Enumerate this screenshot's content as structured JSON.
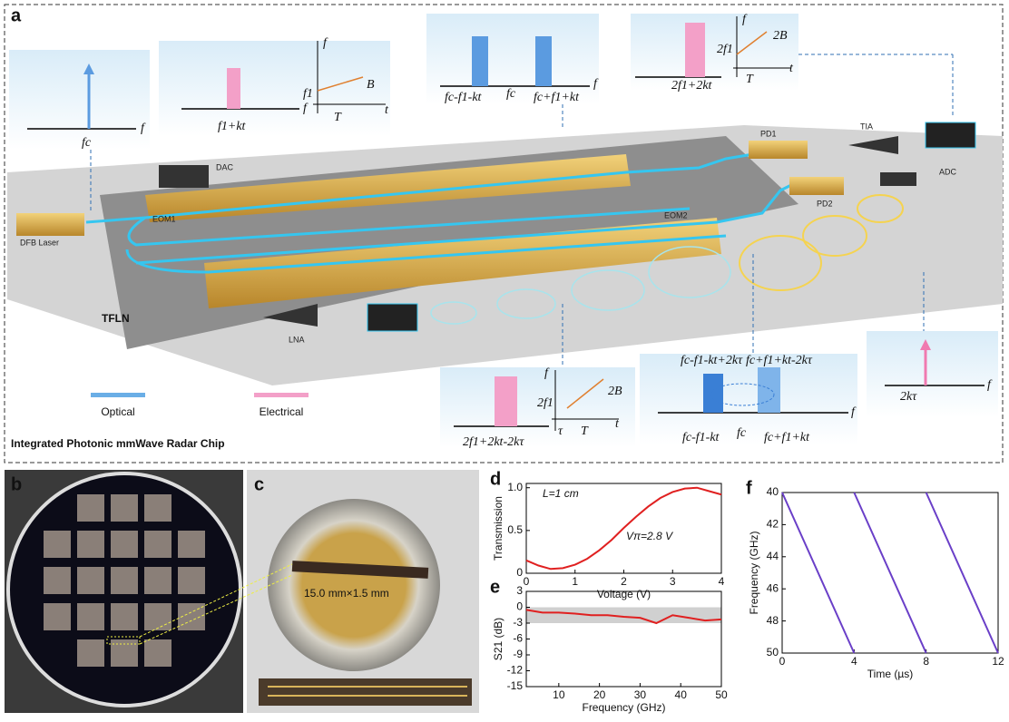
{
  "panel_a": {
    "label": "a",
    "title": "Integrated Photonic mmWave Radar Chip",
    "legend": {
      "optical": "Optical",
      "electrical": "Electrical"
    },
    "components": {
      "dfb": "DFB Laser",
      "dac": "DAC",
      "eom1": "EOM1",
      "eom2": "EOM2",
      "tfln": "TFLN",
      "lna": "LNA",
      "pd1": "PD1",
      "tia": "TIA",
      "pd2": "PD2",
      "adc": "ADC"
    },
    "insets": [
      [
        "f",
        "fc"
      ],
      [
        "f",
        "f1+kt",
        "f",
        "t",
        "B",
        "T",
        "f1"
      ],
      [
        "fc-f1-kt",
        "fc",
        "fc+f1+kt",
        "f"
      ],
      [
        "2f1+2kt",
        "f",
        "t",
        "2f1",
        "2B",
        "T"
      ],
      [
        "2f1+2kt-2kτ",
        "f",
        "t",
        "2f1",
        "2B",
        "τ",
        "T"
      ],
      [
        "fc-f1-kt+2kτ",
        "fc+f1+kt-2kτ",
        "fc-f1-kt",
        "fc",
        "fc+f1+kt",
        "f"
      ],
      [
        "2kτ",
        "f"
      ]
    ]
  },
  "panel_b": {
    "label": "b"
  },
  "panel_c": {
    "label": "c",
    "annotation": "15.0 mm×1.5 mm"
  },
  "charts": [
    {
      "type": "line",
      "label": "d",
      "xlabel": "Voltage (V)",
      "ylabel": "Transmission",
      "annotations": [
        "L=1 cm",
        "Vπ=2.8 V"
      ],
      "x": [
        0,
        0.25,
        0.5,
        0.75,
        1,
        1.25,
        1.5,
        1.75,
        2,
        2.25,
        2.5,
        2.75,
        3,
        3.25,
        3.5,
        3.75,
        4
      ],
      "values": [
        0.15,
        0.09,
        0.05,
        0.06,
        0.1,
        0.17,
        0.27,
        0.39,
        0.53,
        0.66,
        0.78,
        0.88,
        0.95,
        0.99,
        1.0,
        0.96,
        0.92
      ],
      "color": "#e02020",
      "xlim": [
        0,
        4
      ],
      "ylim": [
        0,
        1.05
      ],
      "xticks": [
        0,
        1,
        2,
        3,
        4
      ],
      "yticks": [
        0,
        0.5,
        {
          "value": 1,
          "label": "1.0"
        }
      ]
    },
    {
      "type": "line",
      "label": "e",
      "xlabel": "Frequency (GHz)",
      "ylabel": "S21 (dB)",
      "shaded_band": [
        -3,
        0
      ],
      "x": [
        2,
        6,
        10,
        14,
        18,
        22,
        26,
        30,
        34,
        38,
        42,
        46,
        50
      ],
      "values": [
        -0.5,
        -1,
        -1,
        -1.2,
        -1.5,
        -1.5,
        -1.8,
        -2,
        -3,
        -1.5,
        -2,
        -2.5,
        -2.3
      ],
      "color": "#e02020",
      "xlim": [
        2,
        50
      ],
      "ylim": [
        -15,
        3
      ],
      "xticks": [
        10,
        20,
        30,
        40,
        50
      ],
      "yticks": [
        3,
        0,
        -3,
        -6,
        -9,
        -12,
        -15
      ]
    },
    {
      "type": "line",
      "label": "f",
      "xlabel": "Time (µs)",
      "ylabel": "Frequency (GHz)",
      "x": [
        0,
        4,
        4,
        4,
        8,
        8,
        8,
        12
      ],
      "values": [
        40,
        50,
        null,
        40,
        50,
        null,
        40,
        50
      ],
      "color": "#6a3fc8",
      "xlim": [
        0,
        12
      ],
      "ylim": [
        50,
        40
      ],
      "xticks": [
        0,
        4,
        8,
        12
      ],
      "yticks": [
        40,
        42,
        44,
        46,
        48,
        50
      ]
    }
  ]
}
